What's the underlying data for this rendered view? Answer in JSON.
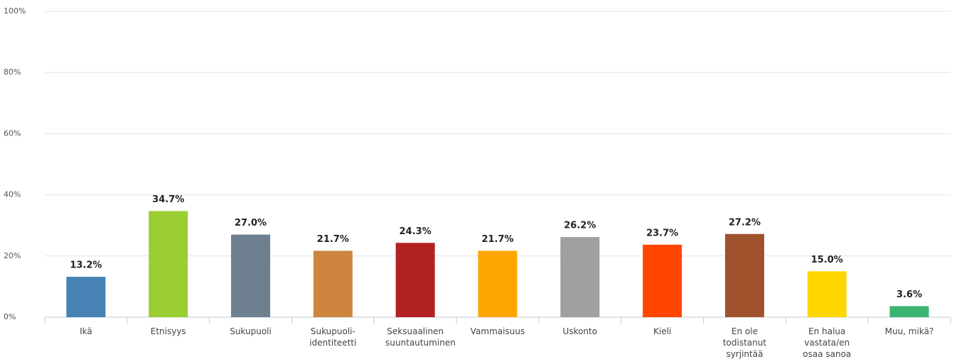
{
  "chart_data": {
    "type": "bar",
    "categories": [
      "Ikä",
      "Etnisyys",
      "Sukupuoli",
      "Sukupuoli-identiteetti",
      "Seksuaalinen suuntautuminen",
      "Vammaisuus",
      "Uskonto",
      "Kieli",
      "En ole todistanut syrjintää",
      "En halua vastata/en osaa sanoa",
      "Muu, mikä?"
    ],
    "values": [
      13.2,
      34.7,
      27.0,
      21.7,
      24.3,
      21.7,
      26.2,
      23.7,
      27.2,
      15.0,
      3.6
    ],
    "value_labels": [
      "13.2%",
      "34.7%",
      "27.0%",
      "21.7%",
      "24.3%",
      "21.7%",
      "26.2%",
      "23.7%",
      "27.2%",
      "15.0%",
      "3.6%"
    ],
    "colors": [
      "#4682b4",
      "#9acd32",
      "#6e7f8f",
      "#cd853f",
      "#b22222",
      "#ffa500",
      "#a0a0a0",
      "#ff4500",
      "#a0522d",
      "#ffd700",
      "#3cb371"
    ],
    "ylim": [
      0,
      100
    ],
    "yticks": [
      {
        "value": 0,
        "label": "0%"
      },
      {
        "value": 20,
        "label": "20%"
      },
      {
        "value": 40,
        "label": "40%"
      },
      {
        "value": 60,
        "label": "60%"
      },
      {
        "value": 80,
        "label": "80%"
      },
      {
        "value": 100,
        "label": "100%"
      }
    ],
    "grid": true
  }
}
